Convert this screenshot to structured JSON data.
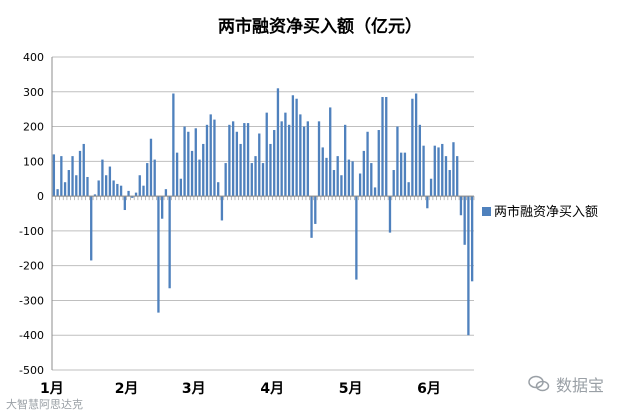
{
  "chart_data": {
    "type": "bar",
    "title": "两市融资净买入额（亿元）",
    "legend": {
      "label": "两市融资净买入额",
      "position": "right"
    },
    "color": "#4F81BD",
    "ylim": [
      -500,
      400
    ],
    "yticks": [
      400,
      300,
      200,
      100,
      0,
      -100,
      -200,
      -300,
      -400,
      -500
    ],
    "month_labels": [
      "1月",
      "2月",
      "3月",
      "4月",
      "5月",
      "6月"
    ],
    "month_start_index": [
      0,
      20,
      38,
      59,
      80,
      101
    ],
    "grid": true,
    "series": [
      {
        "name": "两市融资净买入额",
        "values": [
          120,
          20,
          115,
          40,
          75,
          115,
          60,
          130,
          150,
          55,
          -185,
          5,
          45,
          105,
          60,
          85,
          45,
          35,
          30,
          -40,
          15,
          -5,
          10,
          60,
          30,
          95,
          165,
          105,
          -335,
          -65,
          20,
          -265,
          295,
          125,
          50,
          200,
          185,
          130,
          195,
          105,
          150,
          205,
          235,
          220,
          40,
          -70,
          95,
          205,
          215,
          185,
          150,
          210,
          210,
          95,
          115,
          180,
          95,
          240,
          150,
          190,
          310,
          215,
          240,
          205,
          290,
          280,
          235,
          200,
          215,
          -120,
          -80,
          215,
          140,
          110,
          255,
          75,
          115,
          60,
          205,
          105,
          100,
          -240,
          65,
          130,
          185,
          95,
          25,
          190,
          285,
          285,
          -105,
          75,
          200,
          125,
          125,
          40,
          280,
          295,
          205,
          145,
          -35,
          50,
          145,
          140,
          150,
          115,
          75,
          155,
          115,
          -55,
          -140,
          -400,
          -245
        ]
      }
    ]
  },
  "watermarks": {
    "left": "大智慧阿思达克",
    "right": "数据宝"
  }
}
